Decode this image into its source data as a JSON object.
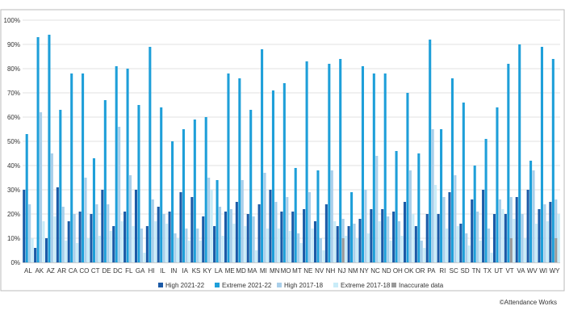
{
  "credit": "©Attendance Works",
  "colors": {
    "High 2021-22": "#1c5aa6",
    "Extreme 2021-22": "#1e9fd9",
    "High 2017-18": "#a9cfea",
    "Extreme 2017-18": "#c9ecf8",
    "Inaccurate data": "#999999"
  },
  "chart_data": {
    "type": "bar",
    "title": "",
    "xlabel": "",
    "ylabel": "",
    "ylim": [
      0,
      100
    ],
    "y_ticks": [
      "0%",
      "10%",
      "20%",
      "30%",
      "40%",
      "50%",
      "60%",
      "70%",
      "80%",
      "90%",
      "100%"
    ],
    "grid": true,
    "legend_position": "bottom",
    "categories": [
      "AL",
      "AK",
      "AZ",
      "AR",
      "CA",
      "CO",
      "CT",
      "DE",
      "DC",
      "FL",
      "GA",
      "HI",
      "IL",
      "IN",
      "IA",
      "KS",
      "KY",
      "LA",
      "ME",
      "MD",
      "MA",
      "MI",
      "MN",
      "MO",
      "MT",
      "NE",
      "NV",
      "NH",
      "NJ",
      "NM",
      "NY",
      "NC",
      "ND",
      "OH",
      "OK",
      "OR",
      "PA",
      "RI",
      "SC",
      "SD",
      "TN",
      "TX",
      "UT",
      "VT",
      "VA",
      "WV",
      "WI",
      "WY"
    ],
    "series": [
      {
        "name": "High 2021-22",
        "values": [
          30,
          6,
          10,
          31,
          17,
          21,
          20,
          30,
          15,
          21,
          30,
          15,
          23,
          21,
          29,
          27,
          19,
          15,
          21,
          25,
          20,
          24,
          30,
          21,
          21,
          22,
          17,
          24,
          15,
          15,
          18,
          22,
          22,
          21,
          25,
          15,
          20,
          20,
          29,
          16,
          26,
          30,
          20,
          20,
          27,
          30,
          22,
          25
        ]
      },
      {
        "name": "Extreme 2021-22",
        "values": [
          53,
          93,
          94,
          63,
          78,
          78,
          43,
          67,
          81,
          80,
          65,
          89,
          64,
          50,
          55,
          59,
          60,
          34,
          78,
          76,
          63,
          88,
          71,
          74,
          39,
          83,
          38,
          82,
          84,
          29,
          81,
          78,
          78,
          46,
          70,
          45,
          92,
          55,
          76,
          66,
          40,
          51,
          64,
          82,
          90,
          42,
          89,
          84
        ]
      },
      {
        "name": "High 2017-18",
        "values": [
          24,
          62,
          45,
          23,
          20,
          35,
          24,
          24,
          56,
          36,
          14,
          26,
          20,
          12,
          14,
          14,
          35,
          23,
          22,
          34,
          19,
          37,
          25,
          27,
          12,
          29,
          10,
          38,
          18,
          16,
          30,
          44,
          19,
          17,
          38,
          9,
          55,
          27,
          36,
          12,
          21,
          14,
          26,
          27,
          20,
          38,
          24,
          26
        ]
      },
      {
        "name": "Extreme 2017-18",
        "values": [
          10,
          17,
          19,
          9,
          8,
          10,
          11,
          13,
          17,
          15,
          4,
          17,
          16,
          10,
          9,
          9,
          30,
          11,
          16,
          15,
          5,
          14,
          14,
          13,
          8,
          14,
          5,
          17,
          11,
          10,
          12,
          17,
          9,
          11,
          20,
          6,
          32,
          14,
          15,
          7,
          9,
          4,
          22,
          18,
          10,
          16,
          17,
          20
        ]
      },
      {
        "name": "Inaccurate data",
        "values": [
          0,
          0,
          0,
          0,
          0,
          0,
          0,
          0,
          0,
          0,
          0,
          0,
          0,
          0,
          0,
          0,
          0,
          0,
          0,
          0,
          0,
          0,
          0,
          0,
          0,
          0,
          0,
          0,
          10,
          0,
          0,
          0,
          0,
          0,
          0,
          0,
          0,
          0,
          0,
          0,
          0,
          0,
          0,
          10,
          0,
          0,
          0,
          10
        ]
      }
    ]
  }
}
